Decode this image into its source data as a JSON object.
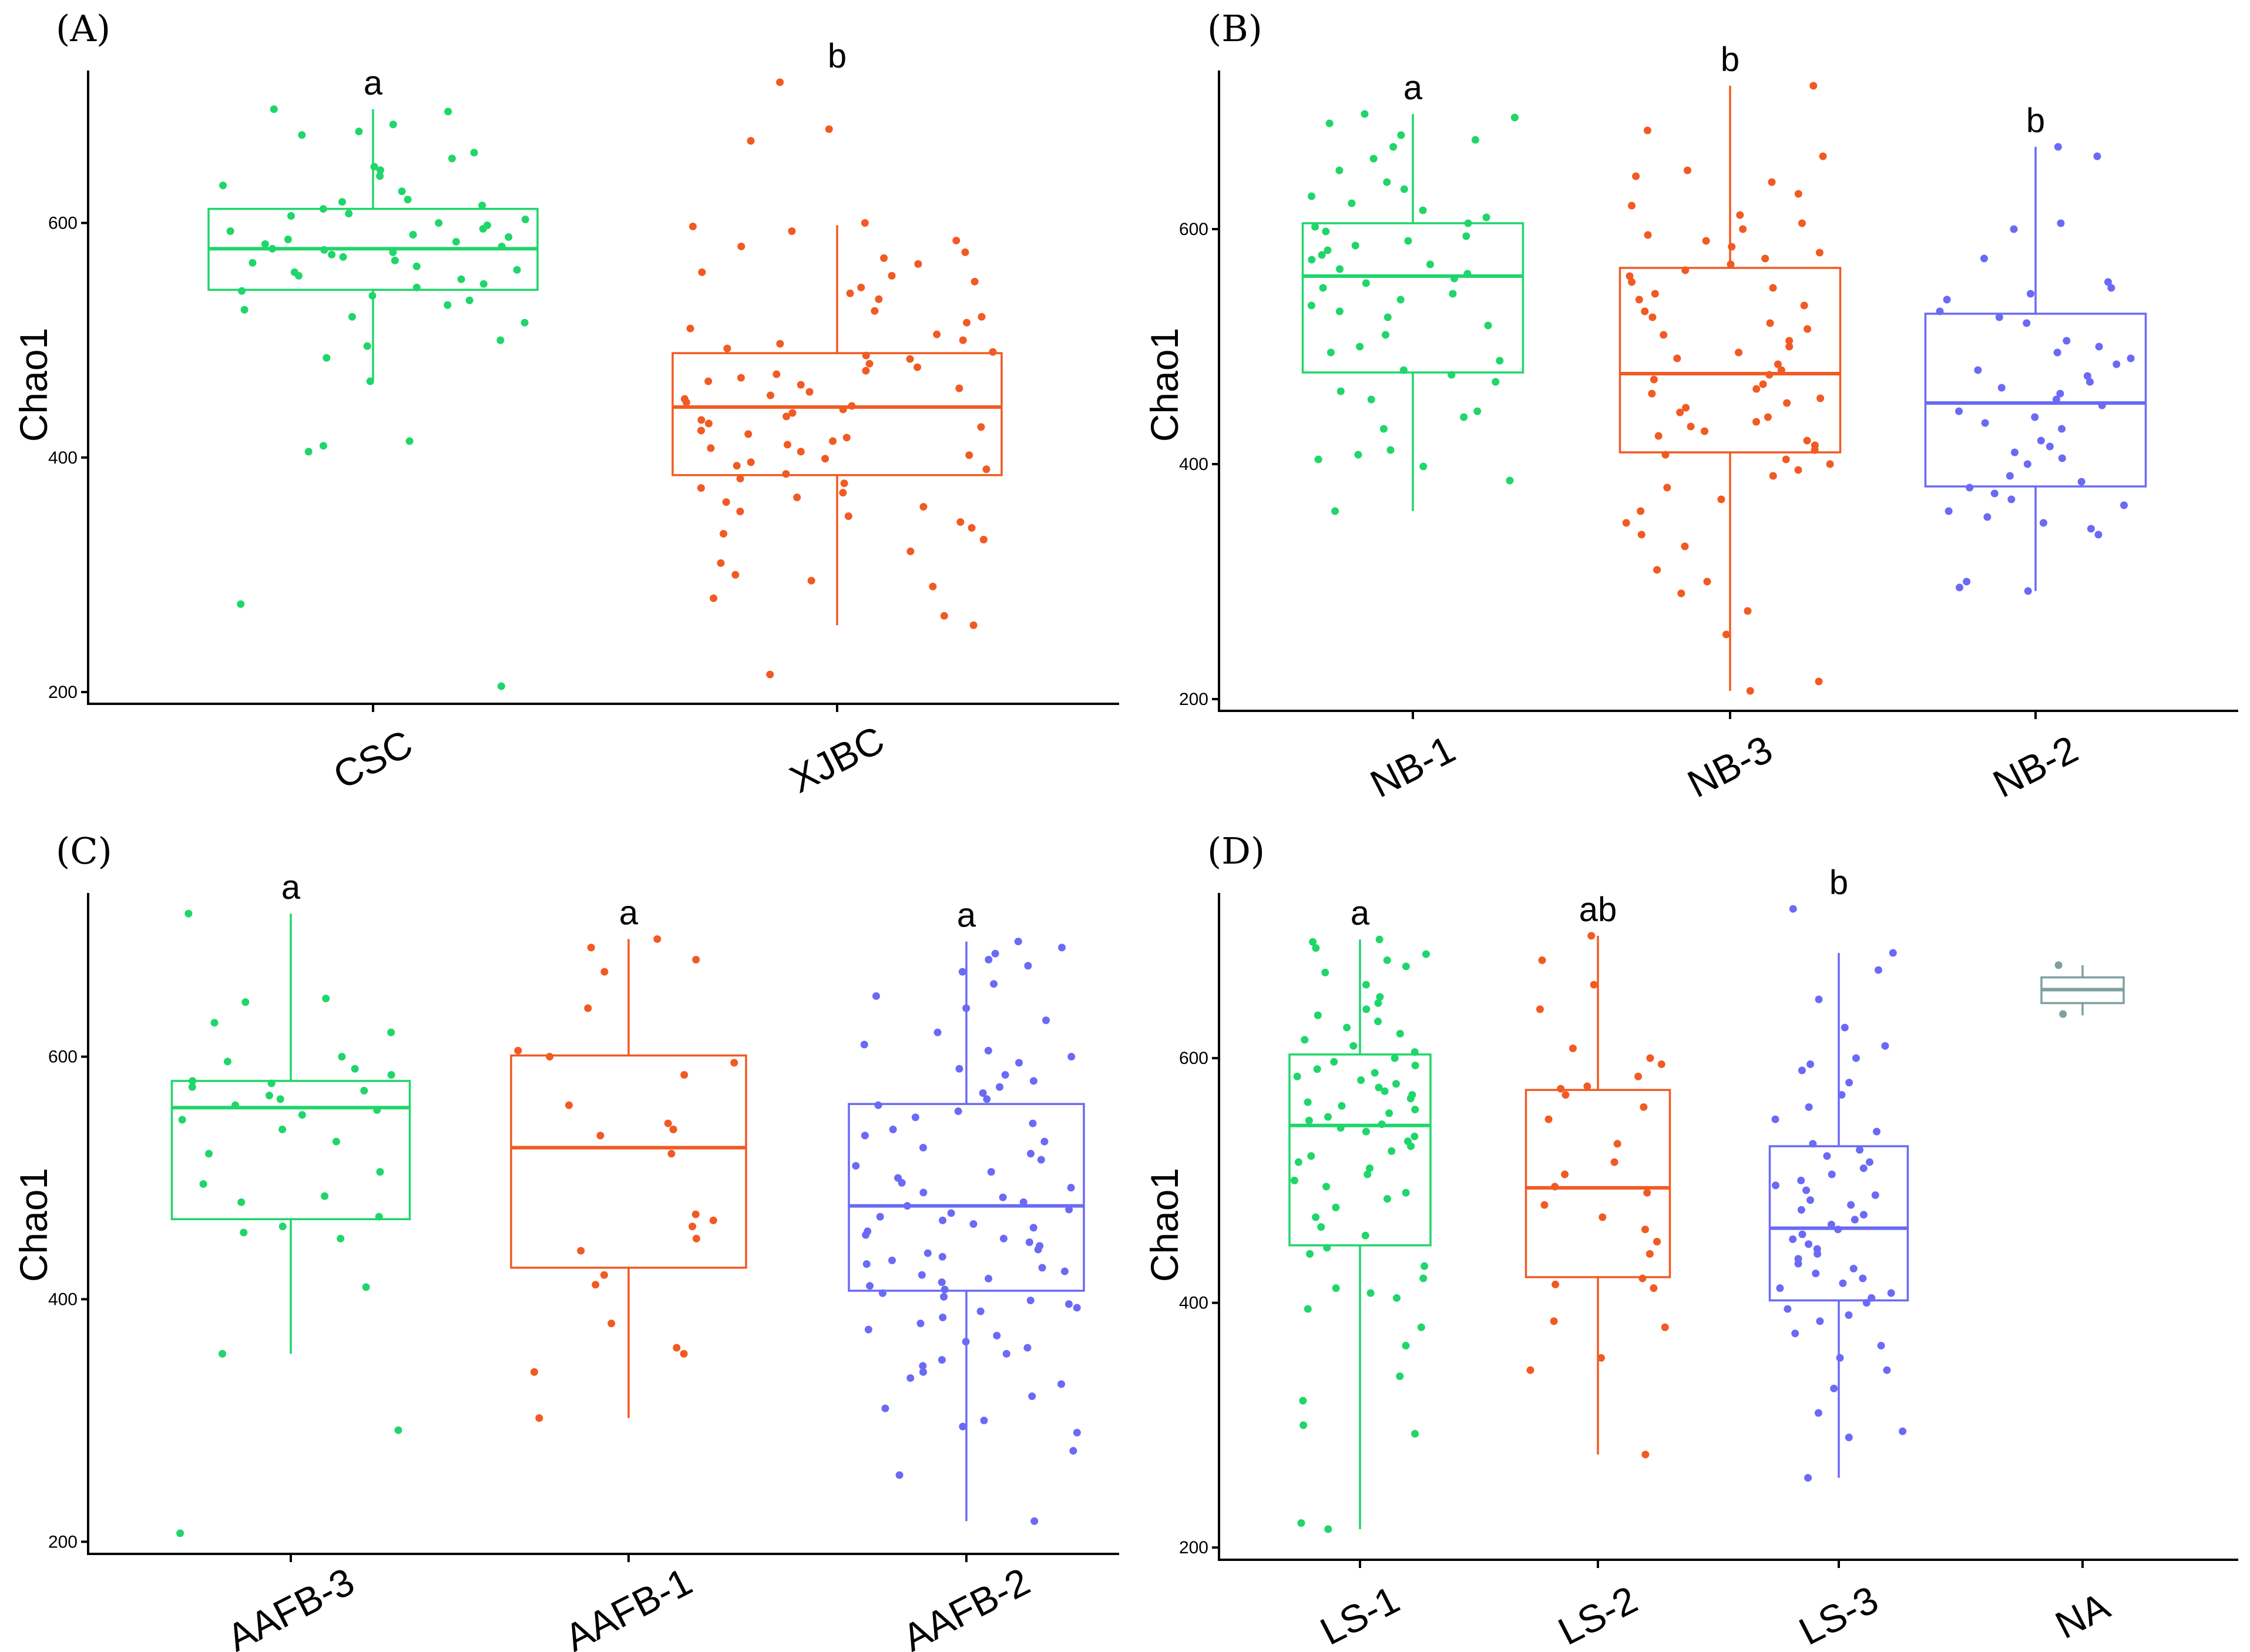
{
  "chart_data": [
    {
      "type": "box",
      "panel_label": "(A)",
      "ylabel": "Chao1",
      "ylim": [
        190,
        730
      ],
      "yticks": [
        200,
        400,
        600
      ],
      "groups": [
        {
          "category": "CSC",
          "color": "#1fd66a",
          "stats": {
            "min": 465,
            "q1": 543,
            "median": 578,
            "q3": 612,
            "max": 697
          },
          "significance": "a",
          "outliers": [
            275,
            205,
            405,
            410,
            414
          ],
          "points": [
            697,
            695,
            684,
            678,
            675,
            660,
            655,
            648,
            645,
            640,
            632,
            627,
            620,
            618,
            615,
            612,
            608,
            606,
            603,
            600,
            598,
            595,
            593,
            590,
            588,
            586,
            584,
            582,
            580,
            578,
            577,
            575,
            573,
            571,
            568,
            566,
            563,
            560,
            558,
            555,
            552,
            548,
            545,
            542,
            538,
            534,
            530,
            526,
            520,
            515,
            500,
            495,
            485,
            465
          ]
        },
        {
          "category": "XJBC",
          "color": "#f15a22",
          "stats": {
            "min": 257,
            "q1": 385,
            "median": 443,
            "q3": 489,
            "max": 598
          },
          "significance": "b",
          "outliers": [
            720,
            680,
            670,
            215
          ],
          "points": [
            600,
            597,
            593,
            585,
            580,
            575,
            570,
            565,
            558,
            555,
            550,
            545,
            540,
            535,
            525,
            520,
            515,
            510,
            505,
            500,
            497,
            493,
            490,
            487,
            484,
            480,
            477,
            474,
            471,
            468,
            465,
            462,
            459,
            456,
            453,
            450,
            447,
            444,
            441,
            438,
            435,
            432,
            429,
            426,
            423,
            420,
            417,
            414,
            411,
            408,
            405,
            402,
            399,
            396,
            393,
            390,
            386,
            382,
            378,
            374,
            370,
            366,
            362,
            358,
            354,
            350,
            345,
            340,
            335,
            330,
            320,
            310,
            300,
            295,
            290,
            280,
            265,
            257
          ]
        }
      ]
    },
    {
      "type": "box",
      "panel_label": "(B)",
      "ylabel": "Chao1",
      "ylim": [
        190,
        735
      ],
      "yticks": [
        200,
        400,
        600
      ],
      "groups": [
        {
          "category": "NB-1",
          "color": "#1fd66a",
          "stats": {
            "min": 360,
            "q1": 478,
            "median": 560,
            "q3": 605,
            "max": 698
          },
          "significance": "a",
          "outliers": [],
          "points": [
            698,
            695,
            690,
            680,
            676,
            670,
            660,
            650,
            640,
            634,
            628,
            622,
            616,
            610,
            605,
            602,
            598,
            594,
            590,
            586,
            582,
            578,
            574,
            570,
            566,
            562,
            558,
            554,
            550,
            545,
            540,
            535,
            530,
            525,
            518,
            510,
            500,
            495,
            488,
            480,
            476,
            470,
            462,
            455,
            445,
            440,
            430,
            412,
            408,
            404,
            398,
            386,
            360
          ]
        },
        {
          "category": "NB-3",
          "color": "#f15a22",
          "stats": {
            "min": 207,
            "q1": 410,
            "median": 477,
            "q3": 567,
            "max": 722
          },
          "significance": "b",
          "outliers": [],
          "points": [
            722,
            684,
            662,
            650,
            645,
            640,
            630,
            620,
            612,
            605,
            600,
            595,
            590,
            585,
            580,
            575,
            570,
            565,
            560,
            555,
            550,
            545,
            540,
            535,
            530,
            525,
            520,
            515,
            510,
            505,
            500,
            495,
            490,
            485,
            480,
            476,
            472,
            468,
            464,
            460,
            456,
            452,
            448,
            444,
            440,
            436,
            432,
            428,
            424,
            420,
            416,
            412,
            408,
            404,
            400,
            395,
            390,
            380,
            370,
            360,
            350,
            340,
            330,
            310,
            300,
            290,
            275,
            255,
            215,
            207
          ]
        },
        {
          "category": "NB-2",
          "color": "#6a6af5",
          "stats": {
            "min": 292,
            "q1": 381,
            "median": 452,
            "q3": 528,
            "max": 670
          },
          "significance": "b",
          "outliers": [],
          "points": [
            670,
            662,
            605,
            600,
            575,
            555,
            550,
            545,
            540,
            530,
            525,
            520,
            505,
            500,
            495,
            490,
            485,
            480,
            475,
            470,
            465,
            460,
            455,
            450,
            445,
            440,
            435,
            430,
            420,
            415,
            410,
            405,
            400,
            390,
            385,
            380,
            375,
            370,
            365,
            360,
            355,
            350,
            345,
            340,
            300,
            295,
            292
          ]
        }
      ]
    },
    {
      "type": "box",
      "panel_label": "(C)",
      "ylabel": "Chao1",
      "ylim": [
        190,
        735
      ],
      "yticks": [
        200,
        400,
        600
      ],
      "groups": [
        {
          "category": "AAFB-3",
          "color": "#1fd66a",
          "stats": {
            "min": 355,
            "q1": 466,
            "median": 558,
            "q3": 580,
            "max": 718
          },
          "significance": "a",
          "outliers": [
            292,
            207
          ],
          "points": [
            718,
            648,
            645,
            628,
            620,
            600,
            596,
            590,
            585,
            580,
            578,
            575,
            572,
            568,
            565,
            560,
            556,
            552,
            548,
            540,
            530,
            520,
            505,
            495,
            485,
            480,
            468,
            460,
            455,
            450,
            410,
            355
          ]
        },
        {
          "category": "AAFB-1",
          "color": "#f15a22",
          "stats": {
            "min": 302,
            "q1": 426,
            "median": 525,
            "q3": 601,
            "max": 697
          },
          "significance": "a",
          "outliers": [],
          "points": [
            697,
            690,
            680,
            670,
            640,
            605,
            600,
            595,
            585,
            560,
            545,
            540,
            535,
            520,
            470,
            465,
            460,
            450,
            440,
            420,
            412,
            380,
            360,
            355,
            340,
            302
          ]
        },
        {
          "category": "AAFB-2",
          "color": "#6a6af5",
          "stats": {
            "min": 217,
            "q1": 407,
            "median": 477,
            "q3": 561,
            "max": 695
          },
          "significance": "a",
          "outliers": [],
          "points": [
            695,
            690,
            685,
            680,
            675,
            670,
            660,
            650,
            640,
            630,
            620,
            610,
            605,
            600,
            595,
            590,
            585,
            580,
            575,
            570,
            565,
            560,
            555,
            550,
            545,
            540,
            535,
            530,
            525,
            520,
            515,
            510,
            505,
            500,
            496,
            492,
            488,
            484,
            480,
            477,
            474,
            471,
            468,
            465,
            462,
            459,
            456,
            453,
            450,
            447,
            444,
            441,
            438,
            435,
            432,
            429,
            426,
            423,
            420,
            417,
            414,
            411,
            408,
            405,
            402,
            399,
            396,
            393,
            390,
            385,
            380,
            375,
            370,
            365,
            360,
            355,
            350,
            345,
            340,
            335,
            330,
            320,
            310,
            300,
            295,
            290,
            275,
            255,
            217
          ]
        }
      ]
    },
    {
      "type": "box",
      "panel_label": "(D)",
      "ylabel": "Chao1",
      "ylim": [
        190,
        735
      ],
      "yticks": [
        200,
        400,
        600
      ],
      "groups": [
        {
          "category": "LS-1",
          "color": "#1fd66a",
          "stats": {
            "min": 215,
            "q1": 447,
            "median": 545,
            "q3": 603,
            "max": 697
          },
          "significance": "a",
          "outliers": [],
          "points": [
            697,
            695,
            690,
            685,
            680,
            675,
            670,
            660,
            650,
            645,
            640,
            635,
            630,
            625,
            620,
            615,
            610,
            605,
            600,
            597,
            594,
            591,
            588,
            585,
            582,
            579,
            576,
            573,
            570,
            567,
            564,
            561,
            558,
            555,
            552,
            549,
            546,
            543,
            540,
            536,
            532,
            528,
            524,
            520,
            515,
            510,
            505,
            500,
            495,
            490,
            485,
            478,
            470,
            462,
            455,
            445,
            440,
            430,
            420,
            412,
            408,
            404,
            395,
            380,
            365,
            340,
            320,
            300,
            293,
            220,
            215
          ]
        },
        {
          "category": "LS-2",
          "color": "#f15a22",
          "stats": {
            "min": 276,
            "q1": 421,
            "median": 494,
            "q3": 574,
            "max": 700
          },
          "significance": "ab",
          "outliers": [],
          "points": [
            700,
            680,
            660,
            640,
            608,
            600,
            595,
            585,
            577,
            575,
            570,
            560,
            550,
            530,
            515,
            505,
            495,
            490,
            480,
            470,
            460,
            450,
            440,
            420,
            415,
            412,
            385,
            380,
            355,
            345,
            276
          ]
        },
        {
          "category": "LS-3",
          "color": "#6a6af5",
          "stats": {
            "min": 257,
            "q1": 402,
            "median": 461,
            "q3": 528,
            "max": 686
          },
          "significance": "b",
          "outliers": [
            722
          ],
          "points": [
            686,
            672,
            648,
            625,
            610,
            600,
            595,
            590,
            580,
            570,
            560,
            550,
            540,
            530,
            525,
            520,
            515,
            510,
            505,
            500,
            496,
            492,
            488,
            484,
            480,
            476,
            472,
            468,
            464,
            460,
            456,
            452,
            448,
            444,
            440,
            436,
            432,
            428,
            424,
            420,
            416,
            412,
            408,
            404,
            400,
            395,
            390,
            385,
            375,
            365,
            355,
            345,
            330,
            310,
            295,
            290,
            257
          ]
        },
        {
          "category": "NA",
          "color": "#7f9fa0",
          "stats": {
            "min": 635,
            "q1": 645,
            "median": 656,
            "q3": 666,
            "max": 676
          },
          "significance": "",
          "outliers": [],
          "points": [
            676,
            636
          ]
        }
      ]
    }
  ]
}
